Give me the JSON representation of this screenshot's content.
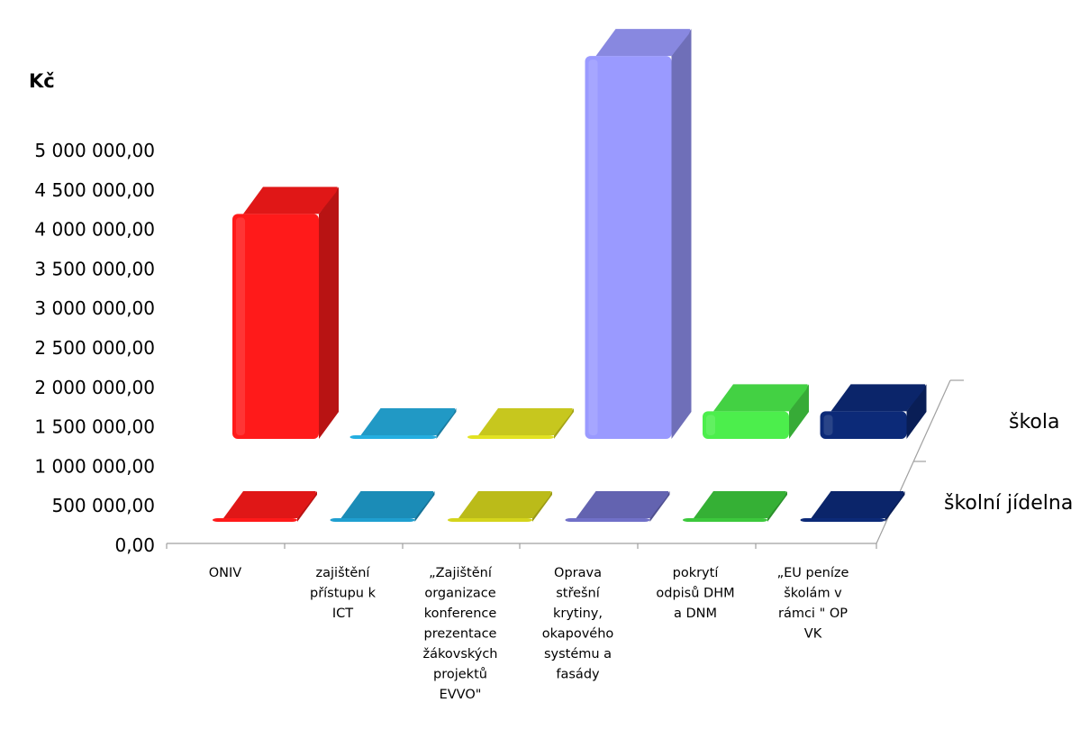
{
  "chart_data": {
    "type": "bar",
    "variant": "3d-column",
    "title": "",
    "unit_label": "Kč",
    "ylim": [
      0,
      5000000
    ],
    "y_ticks": [
      "0,00",
      "500 000,00",
      "1 000 000,00",
      "1 500 000,00",
      "2 000 000,00",
      "2 500 000,00",
      "3 000 000,00",
      "3 500 000,00",
      "4 000 000,00",
      "4 500 000,00",
      "5 000 000,00"
    ],
    "categories": [
      [
        "ONIV"
      ],
      [
        "zajištění",
        "přístupu k",
        "ICT"
      ],
      [
        "„Zajištění",
        "organizace",
        "konference",
        "prezentace",
        "žákovských",
        "projektů",
        "EVVO\""
      ],
      [
        "Oprava",
        "střešní",
        "krytiny,",
        "okapového",
        "systému a",
        "fasády"
      ],
      [
        "pokrytí",
        "odpisů DHM",
        "a DNM"
      ],
      [
        "„EU peníze",
        "školám v",
        "rámci \" OP",
        "VK"
      ]
    ],
    "series": [
      {
        "name": "školní jídelna",
        "values": [
          20000,
          0,
          0,
          0,
          0,
          0
        ]
      },
      {
        "name": "škola",
        "values": [
          2850000,
          0,
          0,
          4850000,
          350000,
          350000
        ]
      }
    ],
    "colors": {
      "front": [
        "#ff1a1a",
        "#1f9fd0",
        "#d4d41c",
        "#7070c8",
        "#3cc83c",
        "#0c2a78"
      ],
      "back": [
        "#ff1a1a",
        "#25aee0",
        "#e2e222",
        "#9a9aff",
        "#4cee4c",
        "#0c2a78"
      ]
    }
  }
}
